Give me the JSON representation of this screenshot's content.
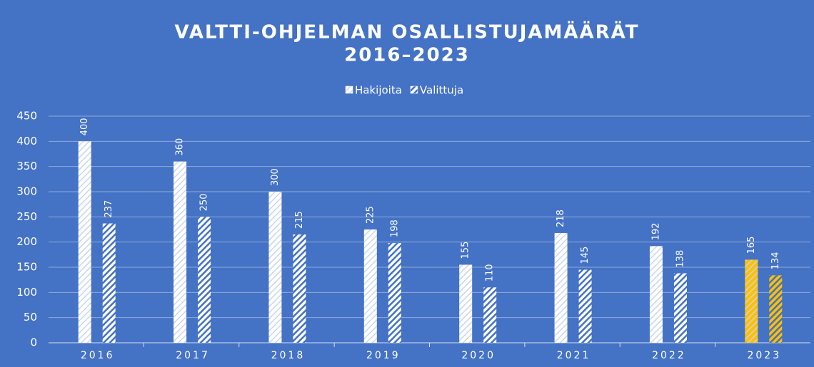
{
  "chart_data": {
    "type": "bar",
    "title": [
      "VALTTI-OHJELMAN OSALLISTUJAMÄÄRÄT",
      "2016–2023"
    ],
    "categories": [
      "2016",
      "2017",
      "2018",
      "2019",
      "2020",
      "2021",
      "2022",
      "2023"
    ],
    "series": [
      {
        "name": "Hakijoita",
        "pattern": "light-hatch",
        "colors": [
          "#ffffff",
          "#ffffff",
          "#ffffff",
          "#ffffff",
          "#ffffff",
          "#ffffff",
          "#ffffff",
          "#ffc000"
        ],
        "values": [
          400,
          360,
          300,
          225,
          155,
          218,
          192,
          165
        ]
      },
      {
        "name": "Valittuja",
        "pattern": "hatch",
        "colors": [
          "#ffffff",
          "#ffffff",
          "#ffffff",
          "#ffffff",
          "#ffffff",
          "#ffffff",
          "#ffffff",
          "#ffc000"
        ],
        "values": [
          237,
          250,
          215,
          198,
          110,
          145,
          138,
          134
        ]
      }
    ],
    "ylim": [
      0,
      450
    ],
    "yticks": [
      0,
      50,
      100,
      150,
      200,
      250,
      300,
      350,
      400,
      450
    ],
    "grid": true,
    "legend": "top"
  }
}
